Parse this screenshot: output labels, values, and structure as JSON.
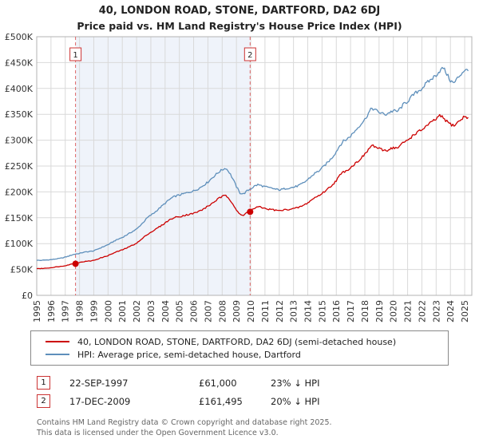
{
  "title": "40, LONDON ROAD, STONE, DARTFORD, DA2 6DJ",
  "subtitle": "Price paid vs. HM Land Registry's House Price Index (HPI)",
  "chart_data": {
    "type": "line",
    "xlim": [
      1995,
      2025.5
    ],
    "ylim": [
      0,
      500
    ],
    "y_unit": "GBP thousands",
    "grid": true,
    "legend_position": "bottom",
    "x_ticks": [
      1995,
      1996,
      1997,
      1998,
      1999,
      2000,
      2001,
      2002,
      2003,
      2004,
      2005,
      2006,
      2007,
      2008,
      2009,
      2010,
      2011,
      2012,
      2013,
      2014,
      2015,
      2016,
      2017,
      2018,
      2019,
      2020,
      2021,
      2022,
      2023,
      2024,
      2025
    ],
    "y_ticks": [
      {
        "value": 0,
        "label": "£0"
      },
      {
        "value": 50,
        "label": "£50K"
      },
      {
        "value": 100,
        "label": "£100K"
      },
      {
        "value": 150,
        "label": "£150K"
      },
      {
        "value": 200,
        "label": "£200K"
      },
      {
        "value": 250,
        "label": "£250K"
      },
      {
        "value": 300,
        "label": "£300K"
      },
      {
        "value": 350,
        "label": "£350K"
      },
      {
        "value": 400,
        "label": "£400K"
      },
      {
        "value": 450,
        "label": "£450K"
      },
      {
        "value": 500,
        "label": "£500K"
      }
    ],
    "shaded_region": {
      "from": 1997.72,
      "to": 2009.96,
      "color": "#e7edf7"
    },
    "series": [
      {
        "name": "40, LONDON ROAD, STONE, DARTFORD, DA2 6DJ (semi-detached house)",
        "color": "#cc0000",
        "x_start": 1995,
        "x_step": 0.25,
        "values": [
          52,
          51.8,
          52.2,
          52.8,
          53.5,
          54.5,
          55.5,
          56.2,
          57.5,
          59,
          61,
          62.5,
          63.5,
          65,
          65.8,
          66.5,
          67.5,
          70,
          72.5,
          74.5,
          77,
          80,
          83,
          85.5,
          88,
          91,
          94,
          97.5,
          101,
          106,
          112,
          118,
          122,
          126,
          131,
          135,
          140,
          145,
          148.5,
          151,
          152,
          154,
          155.5,
          157,
          158.5,
          161,
          164,
          168,
          172,
          177,
          182,
          187,
          191,
          193,
          187,
          177,
          165,
          156,
          154,
          161.5,
          164,
          168,
          171,
          170,
          168,
          166.5,
          166,
          164.5,
          163.5,
          164.5,
          166,
          166.5,
          167.5,
          169,
          171.5,
          174.5,
          179,
          184,
          189,
          192.5,
          197,
          202.5,
          208,
          214.5,
          222,
          232,
          238.5,
          242,
          247,
          253,
          259,
          266,
          272,
          282,
          290,
          287,
          283,
          281,
          280,
          283,
          286,
          284,
          290,
          296,
          300,
          306,
          312,
          316,
          320,
          326,
          331,
          336,
          341,
          347,
          343,
          336,
          331,
          328,
          334,
          340,
          346,
          344
        ]
      },
      {
        "name": "HPI: Average price, semi-detached house, Dartford",
        "color": "#5e8fbb",
        "x_start": 1995,
        "x_step": 0.25,
        "values": [
          68,
          67.5,
          68,
          68.5,
          69,
          70,
          71,
          72,
          74,
          76,
          78.5,
          80,
          81,
          83,
          84,
          85,
          86,
          89,
          92,
          95,
          98,
          102,
          106,
          109,
          112,
          116,
          120,
          124,
          128,
          135,
          142,
          150,
          155,
          160,
          166,
          172,
          178,
          184,
          189,
          192,
          194,
          196,
          198,
          200,
          202,
          205,
          209,
          214,
          219,
          226,
          232,
          238,
          243,
          246,
          238,
          225,
          210,
          198,
          196,
          202,
          206,
          211,
          214,
          212,
          210,
          208,
          207,
          205,
          204,
          205,
          207,
          208,
          209,
          211,
          214,
          218,
          224,
          230,
          236,
          240,
          246,
          253,
          260,
          268,
          278,
          290,
          298,
          302,
          308,
          316,
          324,
          332,
          340,
          352,
          362,
          358,
          354,
          351,
          350,
          354,
          357,
          355,
          362,
          370,
          375,
          383,
          390,
          395,
          400,
          408,
          414,
          420,
          426,
          434,
          440,
          428,
          415,
          410,
          420,
          428,
          436,
          434
        ]
      }
    ],
    "sales": [
      {
        "label": "1",
        "date": "22-SEP-1997",
        "price": "£61,000",
        "note": "23% ↓ HPI",
        "x": 1997.72,
        "value": 61.0
      },
      {
        "label": "2",
        "date": "17-DEC-2009",
        "price": "£161,495",
        "note": "20% ↓ HPI",
        "x": 2009.96,
        "value": 161.495
      }
    ]
  },
  "footer": {
    "line1": "Contains HM Land Registry data © Crown copyright and database right 2025.",
    "line2": "This data is licensed under the Open Government Licence v3.0."
  }
}
